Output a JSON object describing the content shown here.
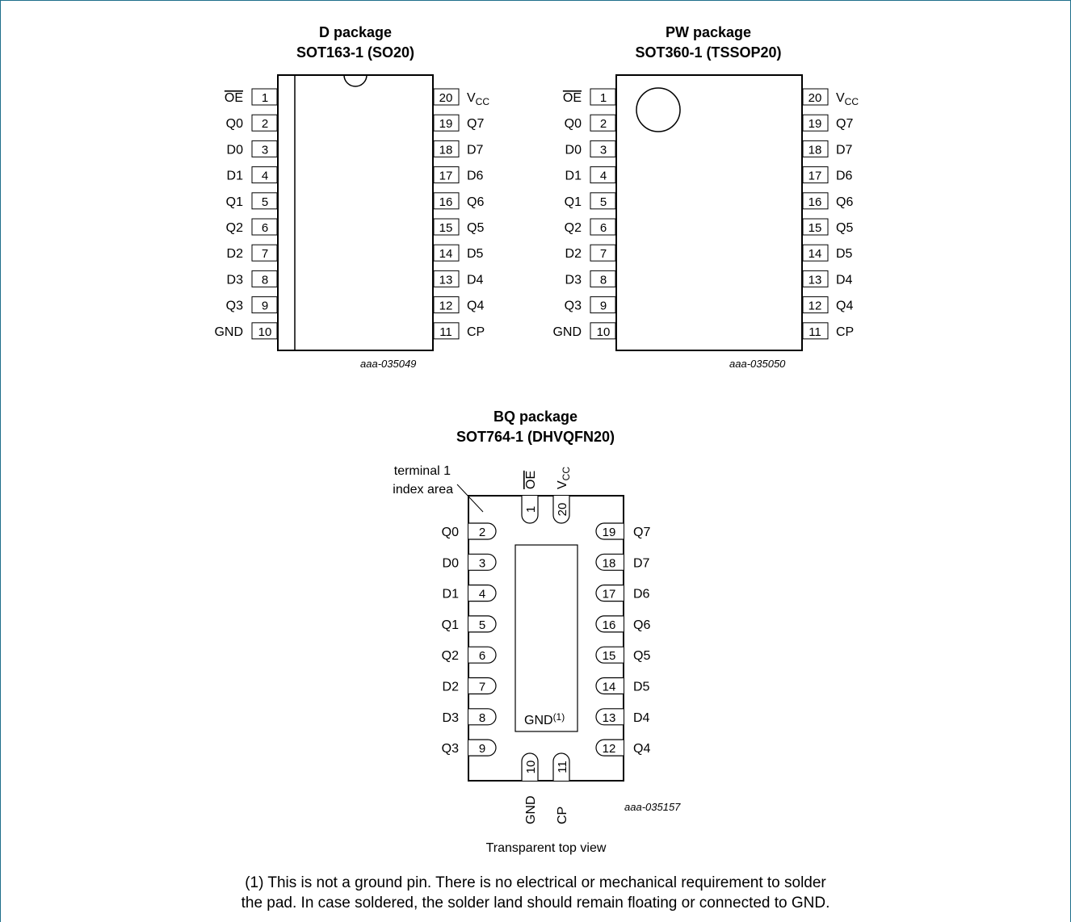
{
  "d_package": {
    "title_line1": "D package",
    "title_line2": "SOT163-1 (SO20)",
    "code": "aaa-035049"
  },
  "pw_package": {
    "title_line1": "PW package",
    "title_line2": "SOT360-1 (TSSOP20)",
    "code": "aaa-035050"
  },
  "bq_package": {
    "title_line1": "BQ package",
    "title_line2": "SOT764-1 (DHVQFN20)",
    "code": "aaa-035157",
    "index_label_line1": "terminal 1",
    "index_label_line2": "index area",
    "gnd_pad_label": "GND",
    "gnd_pad_footnote_mark": "(1)",
    "view_caption": "Transparent top view"
  },
  "pins": {
    "left": [
      {
        "num": "1",
        "name": "OE",
        "overline": true
      },
      {
        "num": "2",
        "name": "Q0"
      },
      {
        "num": "3",
        "name": "D0"
      },
      {
        "num": "4",
        "name": "D1"
      },
      {
        "num": "5",
        "name": "Q1"
      },
      {
        "num": "6",
        "name": "Q2"
      },
      {
        "num": "7",
        "name": "D2"
      },
      {
        "num": "8",
        "name": "D3"
      },
      {
        "num": "9",
        "name": "Q3"
      },
      {
        "num": "10",
        "name": "GND"
      }
    ],
    "right": [
      {
        "num": "20",
        "name": "V",
        "sub": "CC"
      },
      {
        "num": "19",
        "name": "Q7"
      },
      {
        "num": "18",
        "name": "D7"
      },
      {
        "num": "17",
        "name": "D6"
      },
      {
        "num": "16",
        "name": "Q6"
      },
      {
        "num": "15",
        "name": "Q5"
      },
      {
        "num": "14",
        "name": "D5"
      },
      {
        "num": "13",
        "name": "D4"
      },
      {
        "num": "12",
        "name": "Q4"
      },
      {
        "num": "11",
        "name": "CP"
      }
    ]
  },
  "footnote": {
    "line1": "(1) This is not a ground pin. There is no electrical or mechanical requirement to solder",
    "line2": "the pad. In case soldered, the solder land should remain floating or connected to GND."
  }
}
